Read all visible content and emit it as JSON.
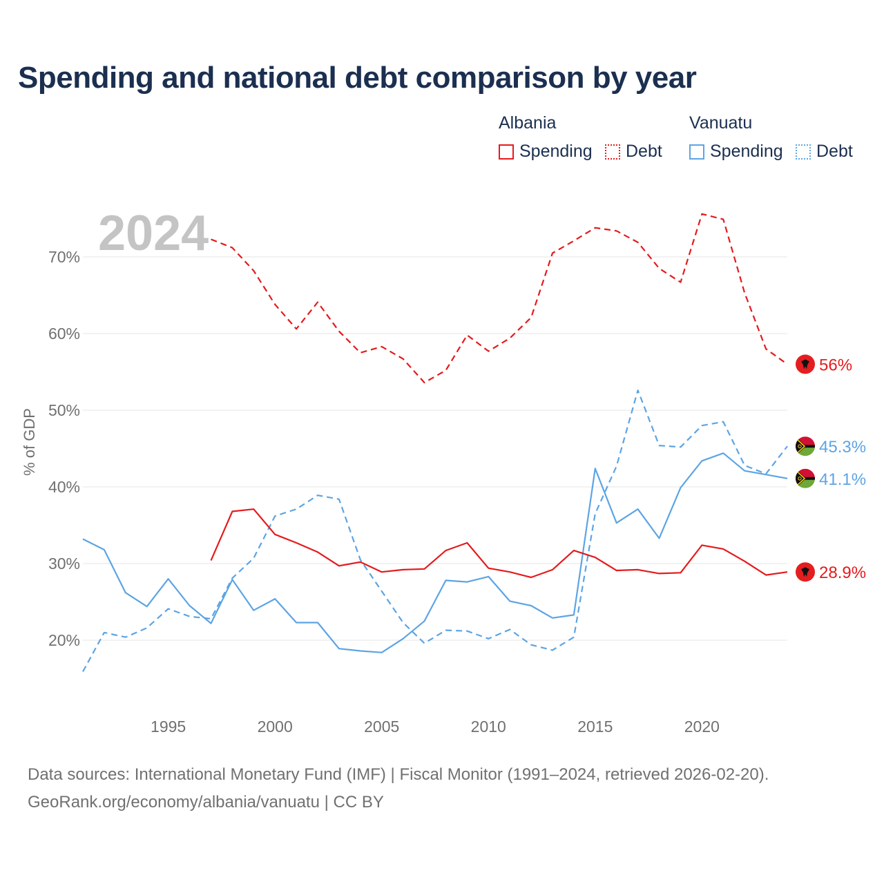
{
  "title": "Spending and national debt comparison by year",
  "legend": {
    "groups": [
      {
        "country": "Albania",
        "items": [
          {
            "label": "Spending",
            "style": "solid",
            "color": "#e41a1c"
          },
          {
            "label": "Debt",
            "style": "dotted",
            "color": "#e41a1c"
          }
        ]
      },
      {
        "country": "Vanuatu",
        "items": [
          {
            "label": "Spending",
            "style": "solid",
            "color": "#5ca4e4"
          },
          {
            "label": "Debt",
            "style": "dotted",
            "color": "#5ca4e4"
          }
        ]
      }
    ]
  },
  "source": {
    "line1": "Data sources: International Monetary Fund (IMF) | Fiscal Monitor (1991–2024, retrieved 2026-02-20).",
    "line2": "GeoRank.org/economy/albania/vanuatu | CC BY"
  },
  "chart_data": {
    "type": "line",
    "watermark_year": "2024",
    "ylabel": "% of GDP",
    "xlim": [
      1991,
      2024
    ],
    "ylim": [
      12,
      78
    ],
    "yticks": [
      20,
      30,
      40,
      50,
      60,
      70
    ],
    "ytick_labels": [
      "20%",
      "30%",
      "40%",
      "50%",
      "60%",
      "70%"
    ],
    "xticks": [
      1995,
      2000,
      2005,
      2010,
      2015,
      2020
    ],
    "xtick_labels": [
      "1995",
      "2000",
      "2005",
      "2010",
      "2015",
      "2020"
    ],
    "series": [
      {
        "name": "Albania Debt",
        "country": "Albania",
        "color": "#e41a1c",
        "dashed": true,
        "end_label": "56%",
        "x": [
          1997,
          1998,
          1999,
          2000,
          2001,
          2002,
          2003,
          2004,
          2005,
          2006,
          2007,
          2008,
          2009,
          2010,
          2011,
          2012,
          2013,
          2014,
          2015,
          2016,
          2017,
          2018,
          2019,
          2020,
          2021,
          2022,
          2023,
          2024
        ],
        "values": [
          72.3,
          71.2,
          68.2,
          63.8,
          60.6,
          64.1,
          60.3,
          57.5,
          58.3,
          56.7,
          53.6,
          55.2,
          59.8,
          57.7,
          59.4,
          62.1,
          70.5,
          72.1,
          73.8,
          73.4,
          71.9,
          68.5,
          66.7,
          75.6,
          74.9,
          65.3,
          58.0,
          56.0
        ]
      },
      {
        "name": "Vanuatu Debt",
        "country": "Vanuatu",
        "color": "#5ca4e4",
        "dashed": true,
        "end_label": "45.3%",
        "x": [
          1991,
          1992,
          1993,
          1994,
          1995,
          1996,
          1997,
          1998,
          1999,
          2000,
          2001,
          2002,
          2003,
          2004,
          2005,
          2006,
          2007,
          2008,
          2009,
          2010,
          2011,
          2012,
          2013,
          2014,
          2015,
          2016,
          2017,
          2018,
          2019,
          2020,
          2021,
          2022,
          2023,
          2024
        ],
        "values": [
          15.9,
          21.0,
          20.4,
          21.6,
          24.1,
          23.1,
          22.8,
          28.1,
          30.7,
          36.2,
          37.1,
          38.9,
          38.4,
          30.5,
          26.4,
          22.3,
          19.6,
          21.3,
          21.2,
          20.2,
          21.4,
          19.4,
          18.7,
          20.4,
          36.5,
          42.7,
          52.6,
          45.4,
          45.2,
          48.0,
          48.5,
          42.8,
          41.7,
          45.3
        ]
      },
      {
        "name": "Vanuatu Spending",
        "country": "Vanuatu",
        "color": "#5ca4e4",
        "dashed": false,
        "end_label": "41.1%",
        "x": [
          1991,
          1992,
          1993,
          1994,
          1995,
          1996,
          1997,
          1998,
          1999,
          2000,
          2001,
          2002,
          2003,
          2004,
          2005,
          2006,
          2007,
          2008,
          2009,
          2010,
          2011,
          2012,
          2013,
          2014,
          2015,
          2016,
          2017,
          2018,
          2019,
          2020,
          2021,
          2022,
          2023,
          2024
        ],
        "values": [
          33.2,
          31.8,
          26.2,
          24.4,
          28.0,
          24.5,
          22.2,
          27.9,
          23.9,
          25.4,
          22.3,
          22.3,
          18.9,
          18.6,
          18.4,
          20.2,
          22.5,
          27.8,
          27.6,
          28.3,
          25.1,
          24.5,
          22.9,
          23.3,
          42.4,
          35.3,
          37.1,
          33.3,
          39.9,
          43.4,
          44.4,
          42.1,
          41.6,
          41.1
        ]
      },
      {
        "name": "Albania Spending",
        "country": "Albania",
        "color": "#e41a1c",
        "dashed": false,
        "end_label": "28.9%",
        "x": [
          1997,
          1998,
          1999,
          2000,
          2001,
          2002,
          2003,
          2004,
          2005,
          2006,
          2007,
          2008,
          2009,
          2010,
          2011,
          2012,
          2013,
          2014,
          2015,
          2016,
          2017,
          2018,
          2019,
          2020,
          2021,
          2022,
          2023,
          2024
        ],
        "values": [
          30.4,
          36.8,
          37.1,
          33.8,
          32.7,
          31.5,
          29.7,
          30.2,
          28.9,
          29.2,
          29.3,
          31.7,
          32.7,
          29.4,
          28.9,
          28.2,
          29.2,
          31.7,
          30.8,
          29.1,
          29.2,
          28.7,
          28.8,
          32.4,
          31.9,
          30.3,
          28.5,
          28.9
        ]
      }
    ]
  }
}
